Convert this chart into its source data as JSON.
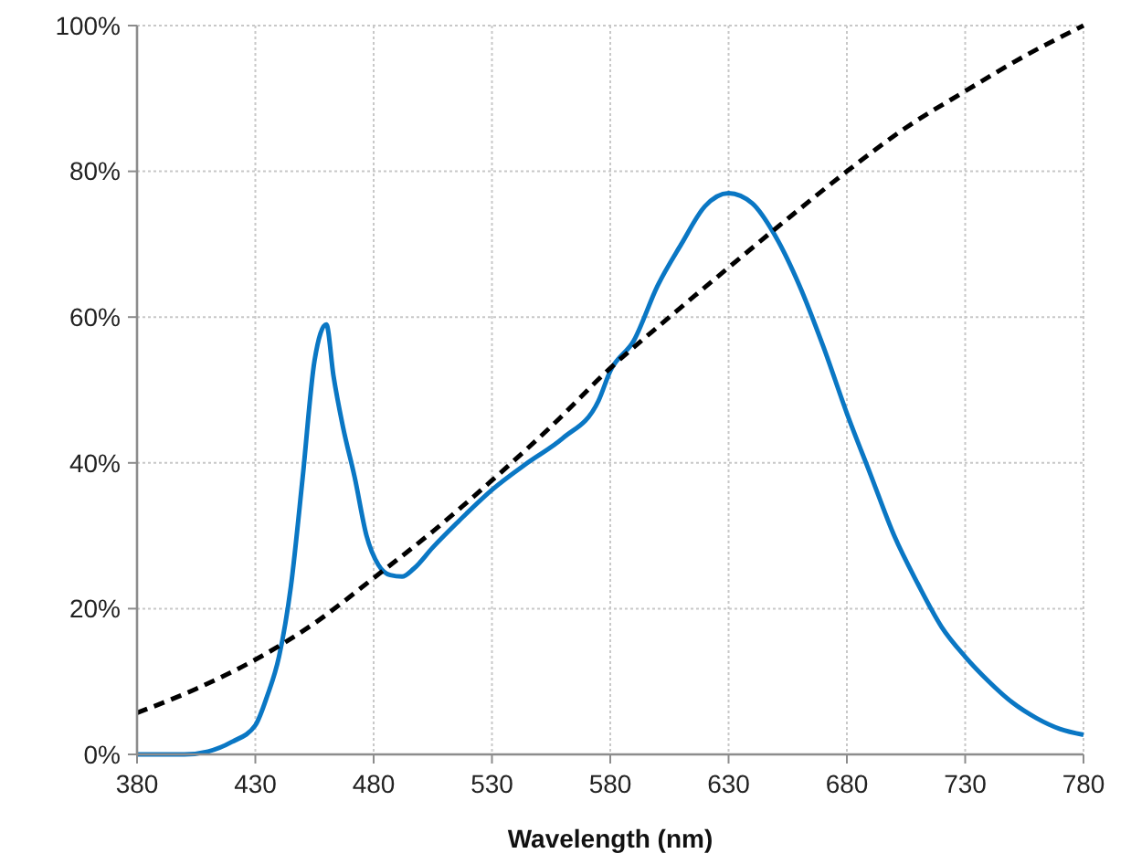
{
  "chart_data": {
    "type": "line",
    "xlabel": "Wavelength (nm)",
    "xlim": [
      380,
      780
    ],
    "xticks": [
      380,
      430,
      480,
      530,
      580,
      630,
      680,
      730,
      780
    ],
    "ylim": [
      0,
      100
    ],
    "yticks": [
      {
        "value": 0,
        "label": "0%"
      },
      {
        "value": 20,
        "label": "20%"
      },
      {
        "value": 40,
        "label": "40%"
      },
      {
        "value": 60,
        "label": "60%"
      },
      {
        "value": 80,
        "label": "80%"
      },
      {
        "value": 100,
        "label": "100%"
      }
    ],
    "grid": true,
    "marker": "none",
    "series": [
      {
        "color": "#0a77c4",
        "line_style": "solid",
        "x": [
          380,
          400,
          410,
          420,
          430,
          435,
          440,
          445,
          450,
          455,
          460,
          463,
          467,
          472,
          477,
          482,
          487,
          492,
          497,
          505,
          515,
          530,
          545,
          560,
          575,
          580,
          590,
          600,
          610,
          620,
          630,
          640,
          650,
          660,
          670,
          680,
          690,
          700,
          710,
          720,
          730,
          740,
          750,
          760,
          770,
          780
        ],
        "values": [
          0,
          0,
          0.4,
          1.7,
          4,
          8,
          13.4,
          23,
          38,
          54,
          59,
          52,
          45,
          38,
          30,
          26,
          24.6,
          24.4,
          25.5,
          28.4,
          31.7,
          36.3,
          40,
          43.4,
          48.5,
          52.6,
          56.8,
          64.3,
          70,
          75.2,
          77,
          75.6,
          71,
          64.3,
          56,
          46.8,
          38.4,
          30,
          23.4,
          17.5,
          13.4,
          10,
          7.1,
          5,
          3.5,
          2.7
        ]
      },
      {
        "color": "#000000",
        "line_style": "dashed",
        "x": [
          380,
          405,
          430,
          455,
          480,
          505,
          530,
          555,
          580,
          605,
          630,
          655,
          680,
          705,
          730,
          755,
          780
        ],
        "values": [
          5.7,
          9,
          13,
          18,
          24.2,
          30.6,
          37.6,
          45,
          53,
          60,
          66.8,
          73.5,
          80,
          86,
          91,
          95.8,
          100
        ]
      }
    ]
  }
}
